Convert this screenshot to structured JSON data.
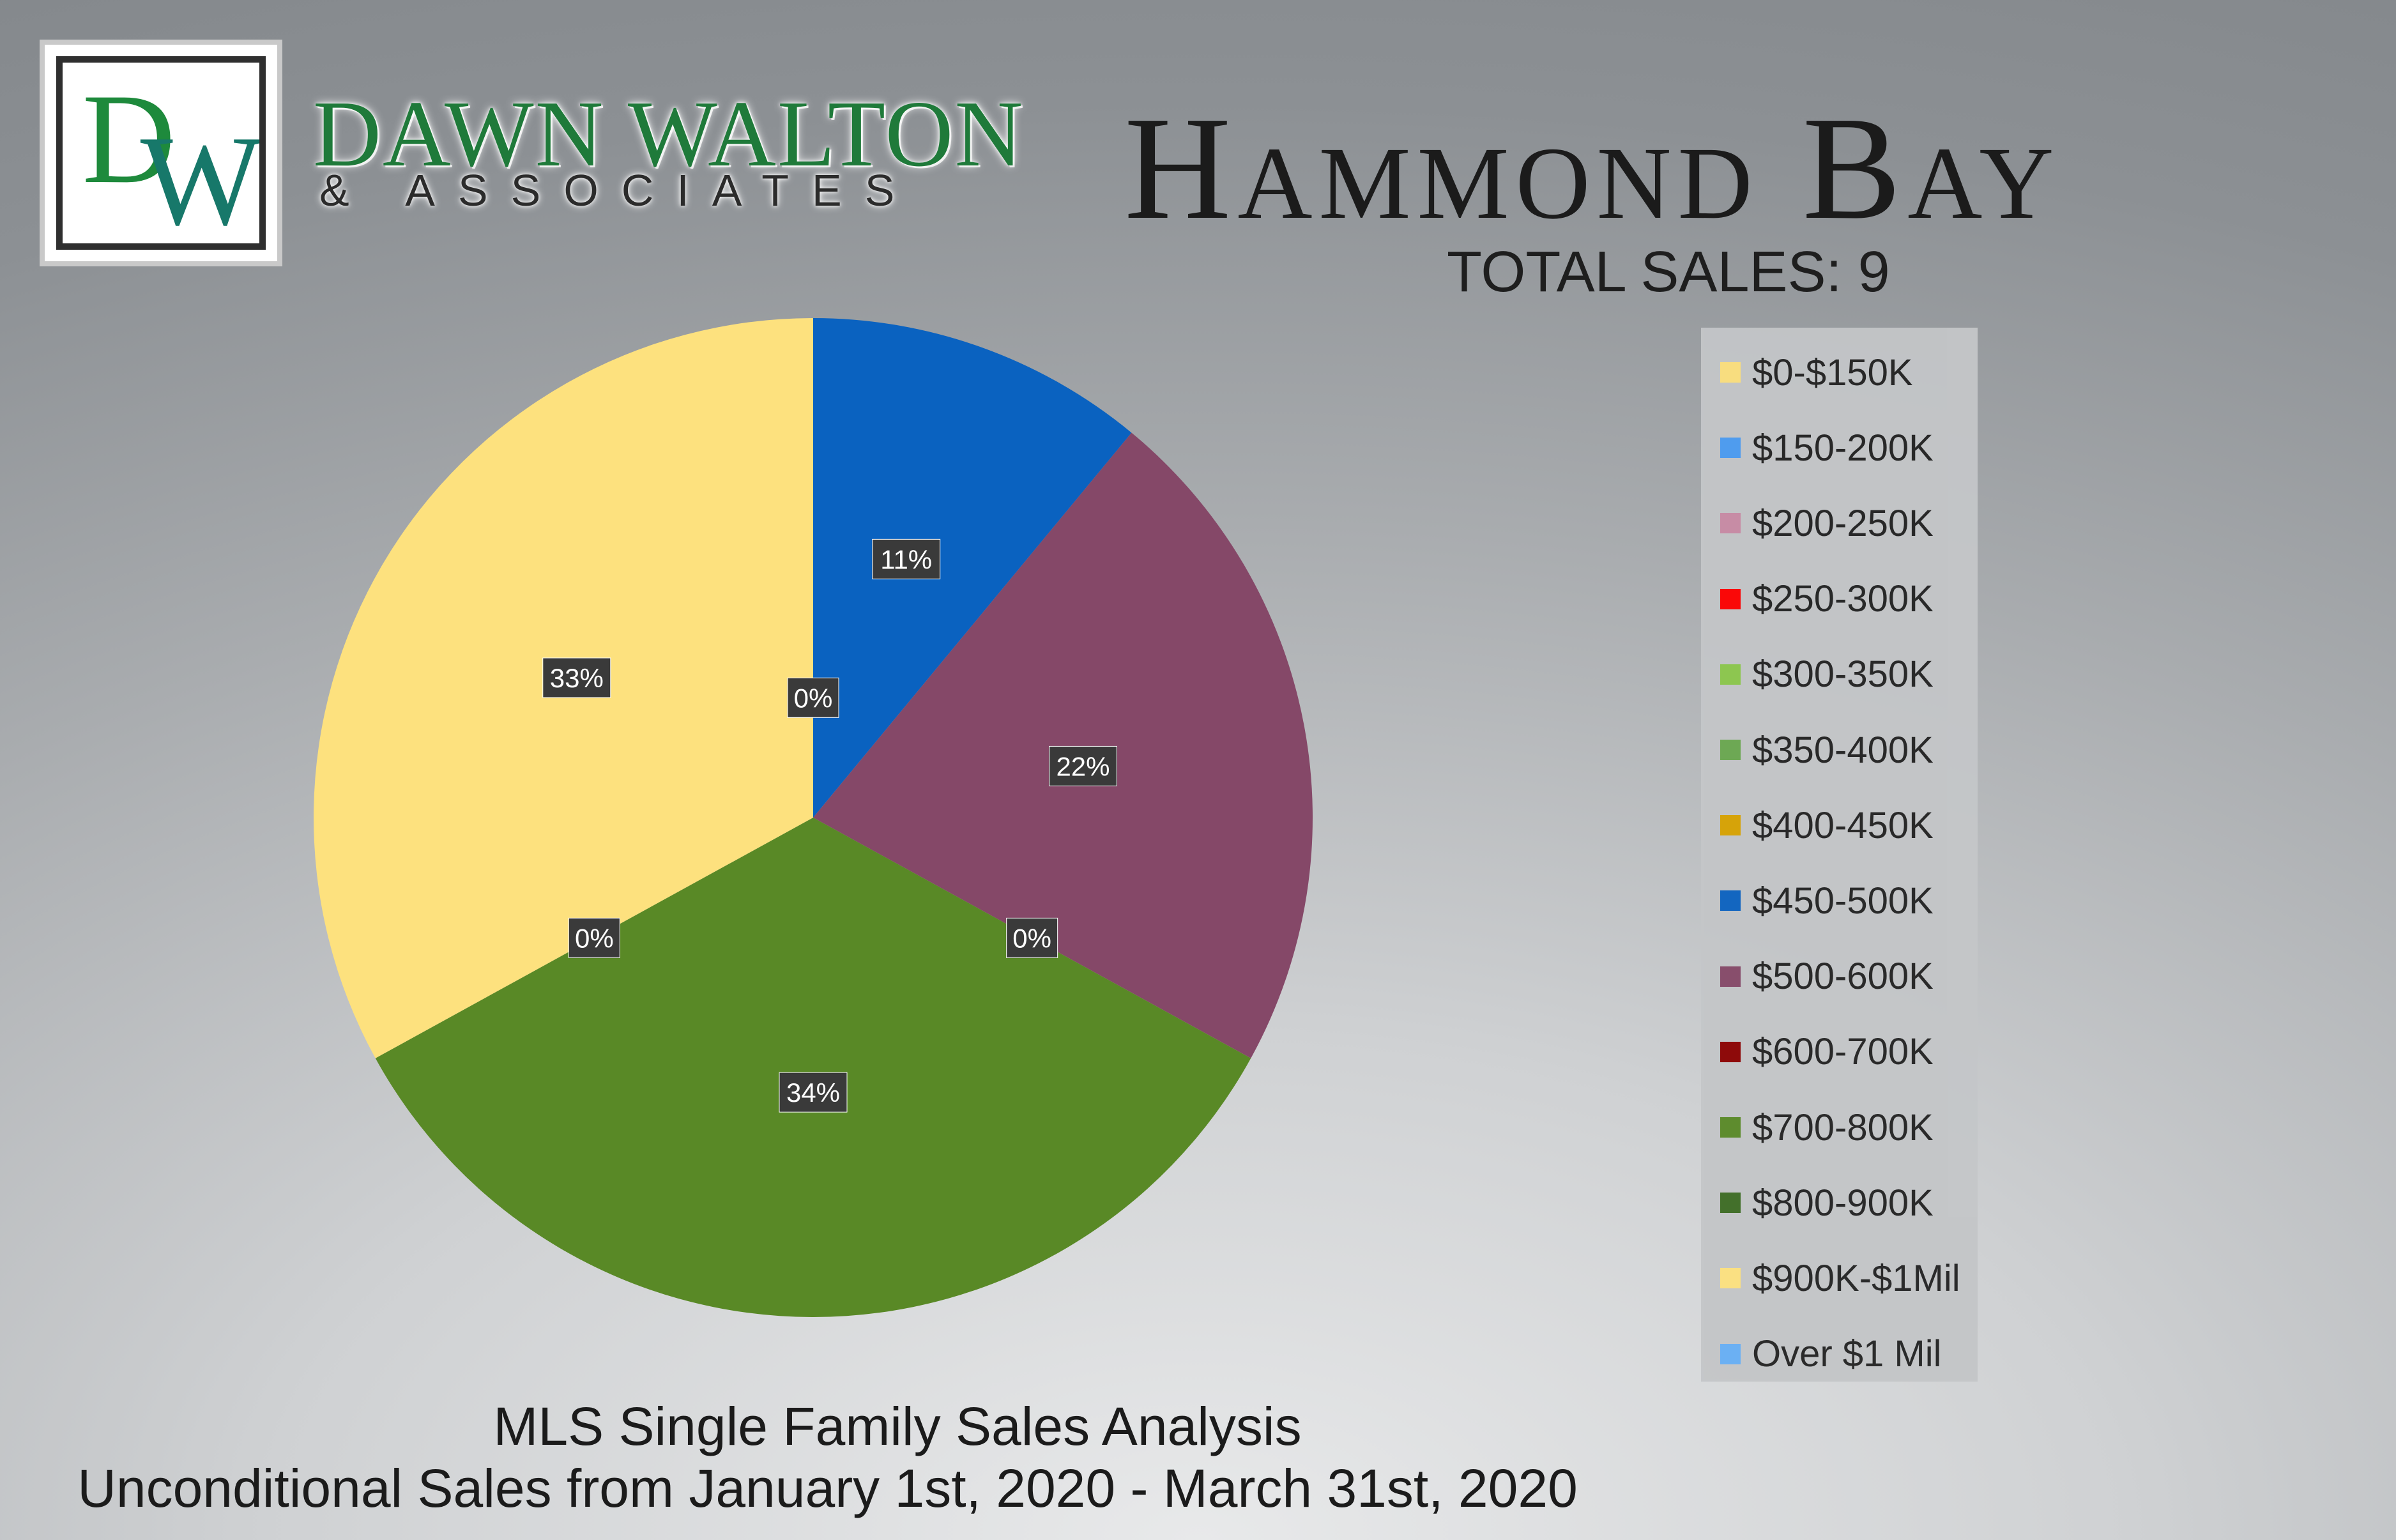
{
  "brand": {
    "logo_letters": "DW",
    "name": "DAWN WALTON",
    "sub": "& ASSOCIATES"
  },
  "header": {
    "title": "Hammond Bay",
    "total_sales": "TOTAL SALES: 9"
  },
  "footer": {
    "line1": "MLS Single Family Sales Analysis",
    "line2": "Unconditional Sales from January 1st, 2020 - March 31st, 2020"
  },
  "chart_data": {
    "type": "pie",
    "categories": [
      "$0-$150K",
      "$150-200K",
      "$200-250K",
      "$250-300K",
      "$300-350K",
      "$350-400K",
      "$400-450K",
      "$450-500K",
      "$500-600K",
      "$600-700K",
      "$700-800K",
      "$800-900K",
      "$900K-$1Mil",
      "Over $1 Mil"
    ],
    "colors": [
      "#fde17e",
      "#4b9cf2",
      "#c98ba5",
      "#ff0000",
      "#8cc84b",
      "#6aa84f",
      "#d8a200",
      "#0a62c0",
      "#854868",
      "#8b0000",
      "#598926",
      "#3c6b22",
      "#fde17e",
      "#66aef5"
    ],
    "values": [
      0,
      0,
      0,
      0,
      0,
      0,
      0,
      11,
      22,
      0,
      34,
      0,
      33,
      0
    ],
    "labels": [
      {
        "category": "$450-500K",
        "text": "11%"
      },
      {
        "category": "$500-600K",
        "text": "22%"
      },
      {
        "category": "$700-800K",
        "text": "34%"
      },
      {
        "category": "$900K-$1Mil",
        "text": "33%"
      },
      {
        "category": "$0-$150K",
        "text": "0%"
      },
      {
        "category": "$600-700K",
        "text": "0%"
      },
      {
        "category": "$800-900K",
        "text": "0%"
      }
    ],
    "legend_position": "right"
  }
}
